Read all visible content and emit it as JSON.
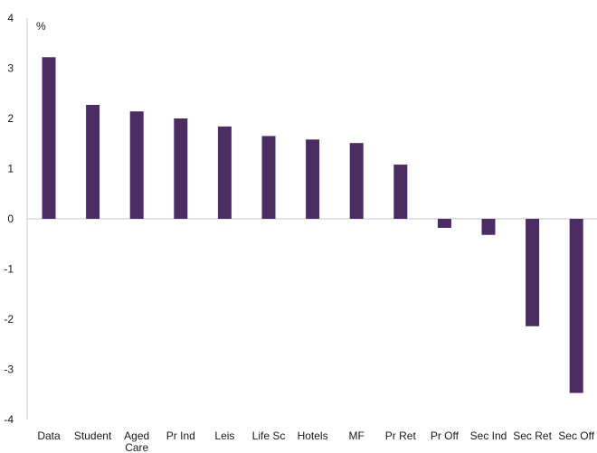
{
  "chart_data": {
    "type": "bar",
    "unit_label": "%",
    "categories": [
      "Data",
      "Student",
      "Aged Care",
      "Pr Ind",
      "Leis",
      "Life Sc",
      "Hotels",
      "MF",
      "Pr Ret",
      "Pr Off",
      "Sec Ind",
      "Sec Ret",
      "Sec Off"
    ],
    "values": [
      3.22,
      2.27,
      2.14,
      2.0,
      1.84,
      1.65,
      1.58,
      1.51,
      1.08,
      -0.18,
      -0.32,
      -2.14,
      -3.47
    ],
    "ylim": [
      -4,
      4
    ],
    "yticks": [
      4,
      3,
      2,
      1,
      0,
      -1,
      -2,
      -3,
      -4
    ],
    "grid": false,
    "legend": "none",
    "bar_color": "#4b2c63",
    "axis_color": "#c8c8d0"
  }
}
